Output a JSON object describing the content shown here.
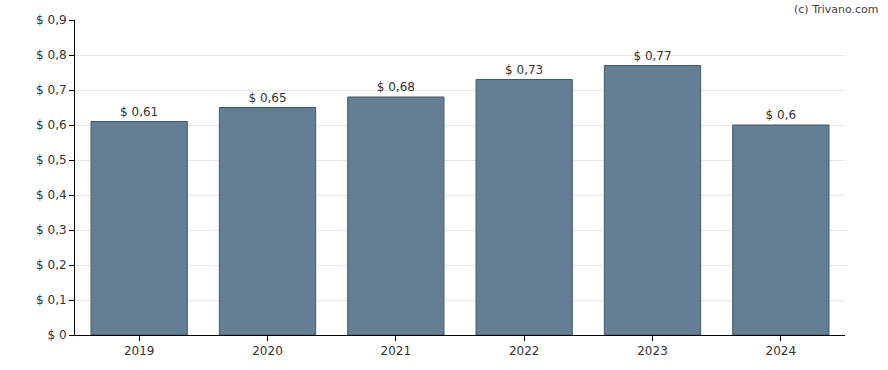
{
  "chart_data": {
    "type": "bar",
    "categories": [
      "2019",
      "2020",
      "2021",
      "2022",
      "2023",
      "2024"
    ],
    "values": [
      0.61,
      0.65,
      0.68,
      0.73,
      0.77,
      0.6
    ],
    "value_labels": [
      "$ 0,61",
      "$ 0,65",
      "$ 0,68",
      "$ 0,73",
      "$ 0,77",
      "$ 0,6"
    ],
    "data_labels": true,
    "color": "#647f94",
    "ylim": [
      0,
      0.9
    ],
    "yticks": [
      {
        "value": 0,
        "label": "$ 0"
      },
      {
        "value": 0.1,
        "label": "$ 0,1"
      },
      {
        "value": 0.2,
        "label": "$ 0,2"
      },
      {
        "value": 0.3,
        "label": "$ 0,3"
      },
      {
        "value": 0.4,
        "label": "$ 0,4"
      },
      {
        "value": 0.5,
        "label": "$ 0,5"
      },
      {
        "value": 0.6,
        "label": "$ 0,6"
      },
      {
        "value": 0.7,
        "label": "$ 0,7"
      },
      {
        "value": 0.8,
        "label": "$ 0,8"
      },
      {
        "value": 0.9,
        "label": "$ 0,9"
      }
    ],
    "grid": true,
    "annotations": [
      "(c) Trivano.com"
    ]
  }
}
